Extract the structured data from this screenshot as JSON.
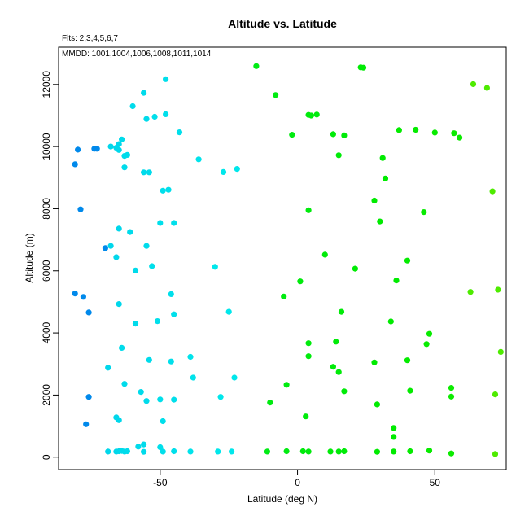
{
  "chart_data": {
    "type": "scatter",
    "title": "Altitude vs. Latitude",
    "annotations": [
      "Flts: 2,3,4,5,6,7",
      "MMDD: 1001,1004,1006,1008,1011,1014"
    ],
    "xlabel": "Latitude (deg N)",
    "ylabel": "Altitude (m)",
    "xlim": [
      -87,
      76
    ],
    "ylim": [
      -400,
      13200
    ],
    "xticks": [
      -50,
      0,
      50
    ],
    "yticks": [
      0,
      2000,
      4000,
      6000,
      8000,
      10000,
      12000
    ],
    "grid": false,
    "legend": "none",
    "points": [
      {
        "x": -80,
        "y": 9900
      },
      {
        "x": -81,
        "y": 9430
      },
      {
        "x": -74,
        "y": 9930
      },
      {
        "x": -73,
        "y": 9930
      },
      {
        "x": -68,
        "y": 10000
      },
      {
        "x": -66,
        "y": 9960
      },
      {
        "x": -79,
        "y": 7980
      },
      {
        "x": -70,
        "y": 6730
      },
      {
        "x": -68,
        "y": 6800
      },
      {
        "x": -81,
        "y": 5270
      },
      {
        "x": -78,
        "y": 5160
      },
      {
        "x": -76,
        "y": 4660
      },
      {
        "x": -69,
        "y": 2880
      },
      {
        "x": -76,
        "y": 1940
      },
      {
        "x": -77,
        "y": 1060
      },
      {
        "x": -69,
        "y": 180
      },
      {
        "x": -64,
        "y": 10230
      },
      {
        "x": -65,
        "y": 10080
      },
      {
        "x": -65,
        "y": 9890
      },
      {
        "x": -63,
        "y": 9700
      },
      {
        "x": -62,
        "y": 9730
      },
      {
        "x": -63,
        "y": 9330
      },
      {
        "x": -61,
        "y": 7250
      },
      {
        "x": -60,
        "y": 11300
      },
      {
        "x": -56,
        "y": 11730
      },
      {
        "x": -55,
        "y": 10890
      },
      {
        "x": -52,
        "y": 10960
      },
      {
        "x": -48,
        "y": 12170
      },
      {
        "x": -48,
        "y": 11040
      },
      {
        "x": -43,
        "y": 10460
      },
      {
        "x": -56,
        "y": 9170
      },
      {
        "x": -54,
        "y": 9170
      },
      {
        "x": -49,
        "y": 8580
      },
      {
        "x": -47,
        "y": 8610
      },
      {
        "x": -36,
        "y": 9590
      },
      {
        "x": -27,
        "y": 9180
      },
      {
        "x": -22,
        "y": 9280
      },
      {
        "x": -65,
        "y": 7360
      },
      {
        "x": -50,
        "y": 7540
      },
      {
        "x": -45,
        "y": 7540
      },
      {
        "x": -55,
        "y": 6800
      },
      {
        "x": -66,
        "y": 6440
      },
      {
        "x": -59,
        "y": 6010
      },
      {
        "x": -53,
        "y": 6150
      },
      {
        "x": -30,
        "y": 6130
      },
      {
        "x": -65,
        "y": 4930
      },
      {
        "x": -46,
        "y": 5250
      },
      {
        "x": -59,
        "y": 4300
      },
      {
        "x": -51,
        "y": 4380
      },
      {
        "x": -45,
        "y": 4600
      },
      {
        "x": -25,
        "y": 4680
      },
      {
        "x": -64,
        "y": 3520
      },
      {
        "x": -54,
        "y": 3130
      },
      {
        "x": -46,
        "y": 3080
      },
      {
        "x": -39,
        "y": 3230
      },
      {
        "x": -63,
        "y": 2360
      },
      {
        "x": -57,
        "y": 2100
      },
      {
        "x": -55,
        "y": 1810
      },
      {
        "x": -50,
        "y": 1860
      },
      {
        "x": -45,
        "y": 1850
      },
      {
        "x": -38,
        "y": 2560
      },
      {
        "x": -28,
        "y": 1940
      },
      {
        "x": -23,
        "y": 2560
      },
      {
        "x": -66,
        "y": 1280
      },
      {
        "x": -65,
        "y": 1190
      },
      {
        "x": -49,
        "y": 1160
      },
      {
        "x": -58,
        "y": 340
      },
      {
        "x": -56,
        "y": 410
      },
      {
        "x": -50,
        "y": 320
      },
      {
        "x": -66,
        "y": 180
      },
      {
        "x": -65,
        "y": 190
      },
      {
        "x": -64,
        "y": 200
      },
      {
        "x": -63,
        "y": 180
      },
      {
        "x": -62,
        "y": 190
      },
      {
        "x": -56,
        "y": 170
      },
      {
        "x": -49,
        "y": 180
      },
      {
        "x": -45,
        "y": 190
      },
      {
        "x": -39,
        "y": 180
      },
      {
        "x": -29,
        "y": 180
      },
      {
        "x": -24,
        "y": 180
      },
      {
        "x": -15,
        "y": 12590
      },
      {
        "x": -8,
        "y": 11660
      },
      {
        "x": 4,
        "y": 11020
      },
      {
        "x": 5,
        "y": 11000
      },
      {
        "x": 7,
        "y": 11030
      },
      {
        "x": -2,
        "y": 10380
      },
      {
        "x": 13,
        "y": 10400
      },
      {
        "x": 17,
        "y": 10360
      },
      {
        "x": 15,
        "y": 9720
      },
      {
        "x": 31,
        "y": 9630
      },
      {
        "x": 32,
        "y": 8970
      },
      {
        "x": 4,
        "y": 7950
      },
      {
        "x": 28,
        "y": 8260
      },
      {
        "x": 30,
        "y": 7590
      },
      {
        "x": 10,
        "y": 6520
      },
      {
        "x": 21,
        "y": 6070
      },
      {
        "x": 1,
        "y": 5660
      },
      {
        "x": -5,
        "y": 5170
      },
      {
        "x": 16,
        "y": 4680
      },
      {
        "x": 4,
        "y": 3670
      },
      {
        "x": 14,
        "y": 3720
      },
      {
        "x": 4,
        "y": 3250
      },
      {
        "x": 13,
        "y": 2910
      },
      {
        "x": 15,
        "y": 2740
      },
      {
        "x": 28,
        "y": 3050
      },
      {
        "x": 17,
        "y": 2120
      },
      {
        "x": -4,
        "y": 2330
      },
      {
        "x": -10,
        "y": 1760
      },
      {
        "x": 3,
        "y": 1310
      },
      {
        "x": 29,
        "y": 1700
      },
      {
        "x": -11,
        "y": 180
      },
      {
        "x": -4,
        "y": 190
      },
      {
        "x": 2,
        "y": 190
      },
      {
        "x": 4,
        "y": 180
      },
      {
        "x": 12,
        "y": 180
      },
      {
        "x": 15,
        "y": 180
      },
      {
        "x": 17,
        "y": 190
      },
      {
        "x": 29,
        "y": 170
      },
      {
        "x": 23,
        "y": 12550
      },
      {
        "x": 24,
        "y": 12540
      },
      {
        "x": 37,
        "y": 10530
      },
      {
        "x": 43,
        "y": 10540
      },
      {
        "x": 50,
        "y": 10450
      },
      {
        "x": 57,
        "y": 10430
      },
      {
        "x": 59,
        "y": 10290
      },
      {
        "x": 64,
        "y": 12010
      },
      {
        "x": 69,
        "y": 11890
      },
      {
        "x": 46,
        "y": 7890
      },
      {
        "x": 71,
        "y": 8560
      },
      {
        "x": 40,
        "y": 6330
      },
      {
        "x": 36,
        "y": 5690
      },
      {
        "x": 63,
        "y": 5320
      },
      {
        "x": 73,
        "y": 5390
      },
      {
        "x": 34,
        "y": 4370
      },
      {
        "x": 48,
        "y": 3970
      },
      {
        "x": 47,
        "y": 3640
      },
      {
        "x": 74,
        "y": 3390
      },
      {
        "x": 40,
        "y": 3120
      },
      {
        "x": 41,
        "y": 2140
      },
      {
        "x": 56,
        "y": 2230
      },
      {
        "x": 56,
        "y": 1950
      },
      {
        "x": 72,
        "y": 2020
      },
      {
        "x": 35,
        "y": 940
      },
      {
        "x": 35,
        "y": 650
      },
      {
        "x": 35,
        "y": 180
      },
      {
        "x": 41,
        "y": 190
      },
      {
        "x": 48,
        "y": 210
      },
      {
        "x": 56,
        "y": 120
      },
      {
        "x": 72,
        "y": 100
      }
    ]
  }
}
